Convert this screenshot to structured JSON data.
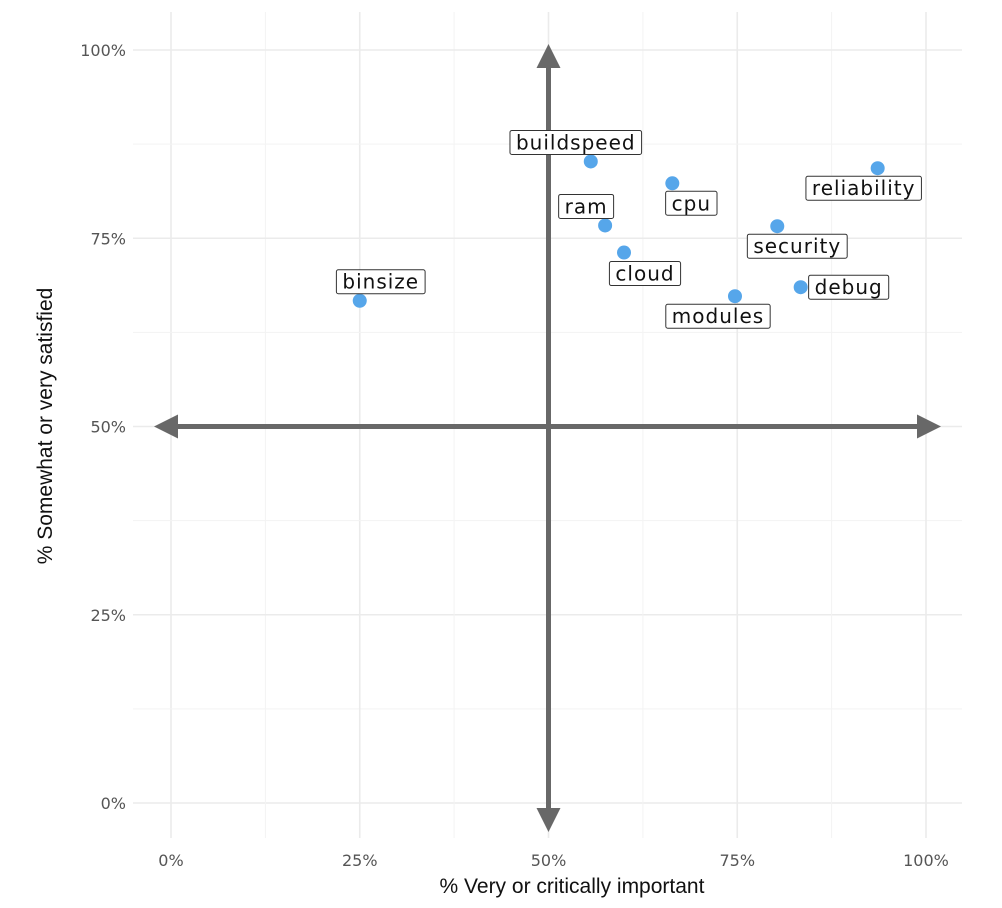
{
  "chart_data": {
    "type": "scatter",
    "title": "",
    "xlabel": "%   Very   or   critically   important",
    "ylabel": "% Somewhat or very satisfied",
    "xlim": [
      0,
      1
    ],
    "ylim": [
      0,
      1
    ],
    "x_ticks": [
      "0%",
      "25%",
      "50%",
      "75%",
      "100%"
    ],
    "y_ticks": [
      "0%",
      "25%",
      "50%",
      "75%",
      "100%"
    ],
    "quadrant_center": [
      0.5,
      0.5
    ],
    "points": [
      {
        "label": "binsize",
        "x": 0.25,
        "y": 0.667
      },
      {
        "label": "buildspeed",
        "x": 0.556,
        "y": 0.852
      },
      {
        "label": "ram",
        "x": 0.575,
        "y": 0.767
      },
      {
        "label": "cloud",
        "x": 0.6,
        "y": 0.731
      },
      {
        "label": "cpu",
        "x": 0.664,
        "y": 0.823
      },
      {
        "label": "modules",
        "x": 0.747,
        "y": 0.673
      },
      {
        "label": "security",
        "x": 0.803,
        "y": 0.766
      },
      {
        "label": "debug",
        "x": 0.834,
        "y": 0.685
      },
      {
        "label": "reliability",
        "x": 0.936,
        "y": 0.843
      }
    ],
    "point_color": "#56a6ea",
    "axis_color": "#686868"
  }
}
